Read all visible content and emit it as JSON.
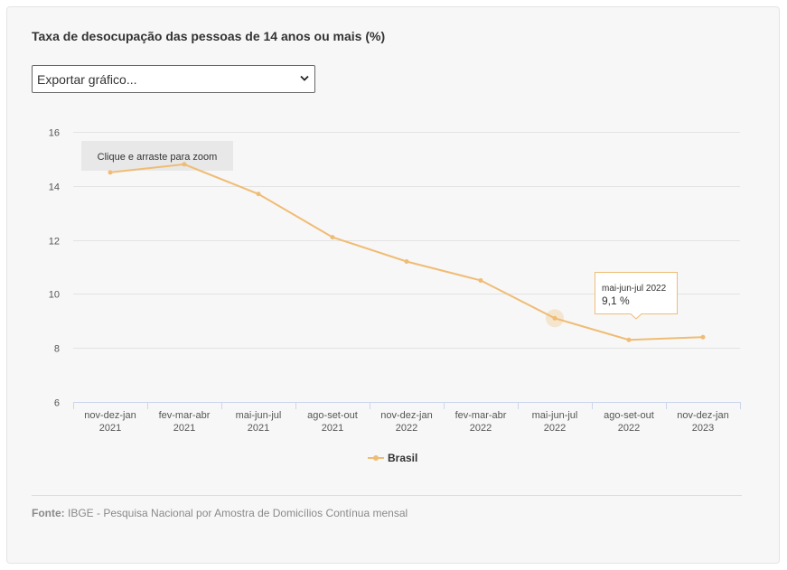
{
  "chart_data": {
    "type": "line",
    "title": "Taxa de desocupação das pessoas de 14 anos ou mais (%)",
    "categories": [
      [
        "nov-dez-jan",
        "2021"
      ],
      [
        "fev-mar-abr",
        "2021"
      ],
      [
        "mai-jun-jul",
        "2021"
      ],
      [
        "ago-set-out",
        "2021"
      ],
      [
        "nov-dez-jan",
        "2022"
      ],
      [
        "fev-mar-abr",
        "2022"
      ],
      [
        "mai-jun-jul",
        "2022"
      ],
      [
        "ago-set-out",
        "2022"
      ],
      [
        "nov-dez-jan",
        "2023"
      ]
    ],
    "series": [
      {
        "name": "Brasil",
        "values": [
          14.5,
          14.8,
          13.7,
          12.1,
          11.2,
          10.5,
          9.1,
          8.3,
          8.4
        ]
      }
    ],
    "ylim": [
      6,
      16
    ],
    "yticks": [
      16,
      14,
      12,
      10,
      8,
      6
    ],
    "xlabel": "",
    "ylabel": "",
    "grid": true,
    "legend": "bottom-center",
    "color": "#f0bc74",
    "hover_index": 6
  },
  "ui": {
    "export_label": "Exportar gráfico...",
    "zoom_hint": "Clique e arraste para zoom",
    "tooltip_title": "mai-jun-jul 2022",
    "tooltip_value": "9,1 %",
    "legend_label": "Brasil",
    "source_label": "Fonte:",
    "source_text": " IBGE - Pesquisa Nacional por Amostra de Domicílios Contínua mensal"
  }
}
